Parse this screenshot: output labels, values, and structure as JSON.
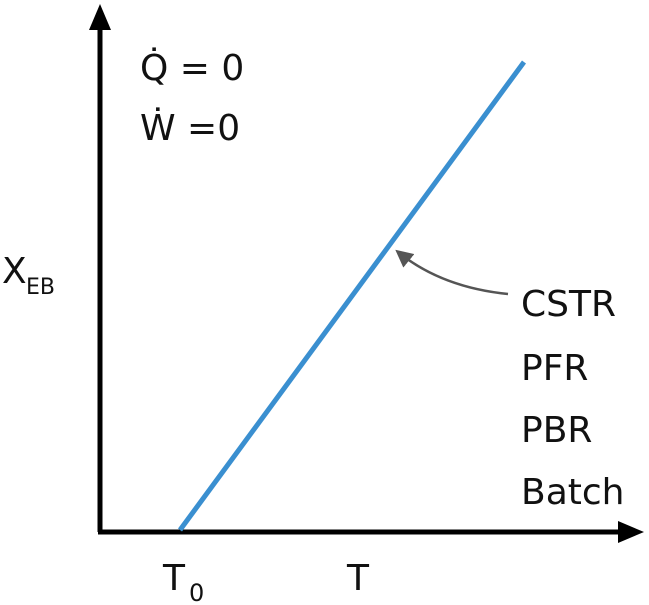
{
  "diagram": {
    "conditions": {
      "q_dot": "Q̇ = 0",
      "w_dot": "Ẇ =0"
    },
    "y_axis_label": {
      "main": "X",
      "sub": "EB"
    },
    "x_axis_labels": {
      "t0_main": "T",
      "t0_sub": "0",
      "t": "T"
    },
    "line_label": {
      "items": [
        "CSTR",
        "PFR",
        "PBR",
        "Batch"
      ]
    },
    "colors": {
      "axis": "#000000",
      "line": "#3a8fd0",
      "arrow": "#555555",
      "text": "#111111"
    }
  }
}
